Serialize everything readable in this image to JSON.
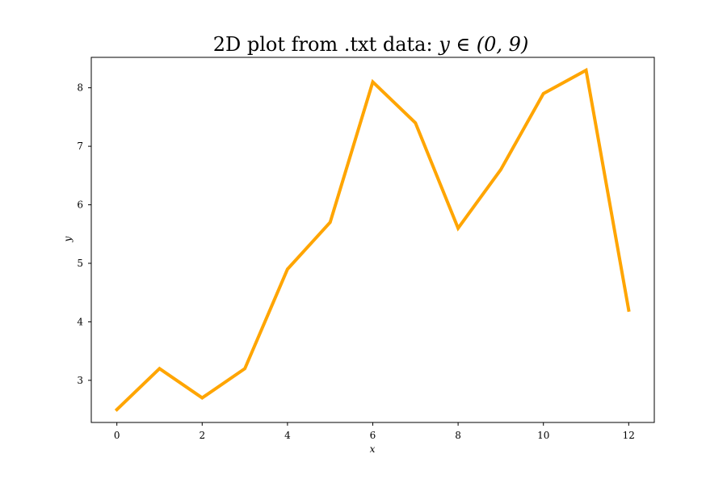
{
  "chart_data": {
    "type": "line",
    "title": "2D plot from .txt data: ",
    "title_math": "y ∈ (0, 9)",
    "xlabel": "x",
    "ylabel": "y",
    "xlim": [
      -0.6,
      12.6
    ],
    "ylim": [
      2.28,
      8.52
    ],
    "xticks": [
      0,
      2,
      4,
      6,
      8,
      10,
      12
    ],
    "yticks": [
      3,
      4,
      5,
      6,
      7,
      8
    ],
    "grid": false,
    "legend": "none",
    "series": [
      {
        "color": "#ffa500",
        "x": [
          0,
          1,
          2,
          3,
          4,
          5,
          6,
          7,
          8,
          9,
          10,
          11,
          12
        ],
        "y": [
          2.5,
          3.2,
          2.7,
          3.2,
          4.9,
          5.7,
          8.1,
          7.4,
          5.6,
          6.6,
          7.9,
          8.3,
          4.2
        ]
      }
    ]
  }
}
